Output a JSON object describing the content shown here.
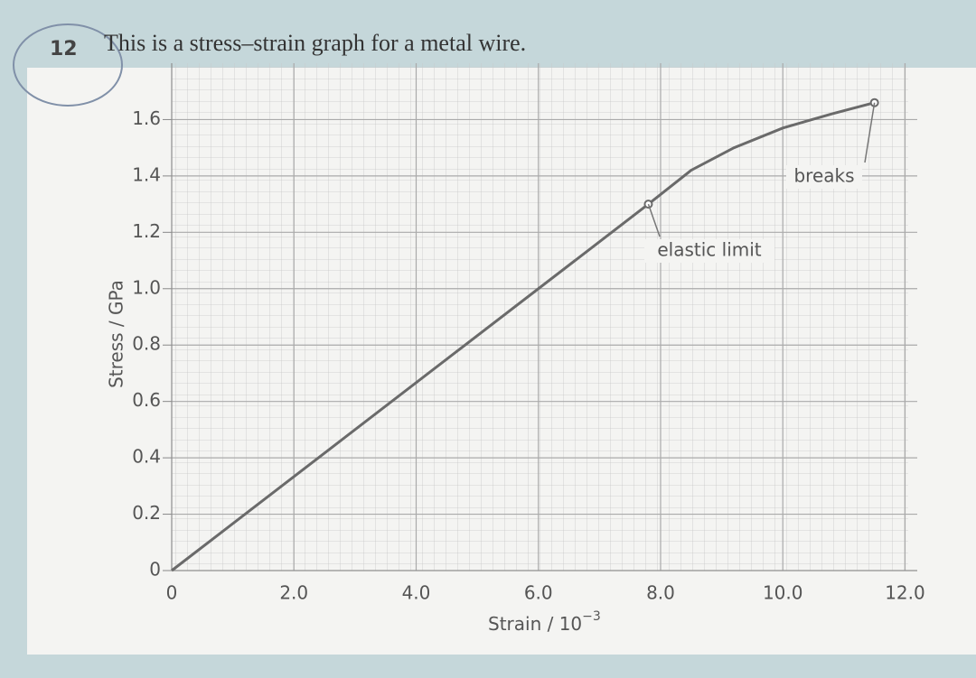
{
  "question_number": "12",
  "question_text": "This is a stress–strain graph for a metal wire.",
  "chart_data": {
    "type": "line",
    "ylabel": "Stress / GPa",
    "xlabel": {
      "text": "Strain / 10",
      "superscript": "−3"
    },
    "series": [
      {
        "color": "#6a6a6a",
        "x": [
          0,
          7.8,
          8.5,
          9.2,
          10.0,
          10.8,
          11.5
        ],
        "values": [
          0,
          1.3,
          1.42,
          1.5,
          1.57,
          1.62,
          1.66
        ]
      }
    ],
    "annotations": [
      "elastic limit",
      "breaks"
    ],
    "xlim": [
      0,
      12.2
    ],
    "ylim": [
      0,
      1.8
    ],
    "xticks": [
      0,
      {
        "value": 2,
        "label": "2.0"
      },
      {
        "value": 4,
        "label": "4.0"
      },
      {
        "value": 6,
        "label": "6.0"
      },
      {
        "value": 8,
        "label": "8.0"
      },
      {
        "value": 10,
        "label": "10.0"
      },
      {
        "value": 12,
        "label": "12.0"
      }
    ],
    "yticks": [
      0,
      0.2,
      0.4,
      0.6,
      0.8,
      {
        "value": 1,
        "label": "1.0"
      },
      1.2,
      1.4,
      1.6
    ],
    "grid": true
  }
}
